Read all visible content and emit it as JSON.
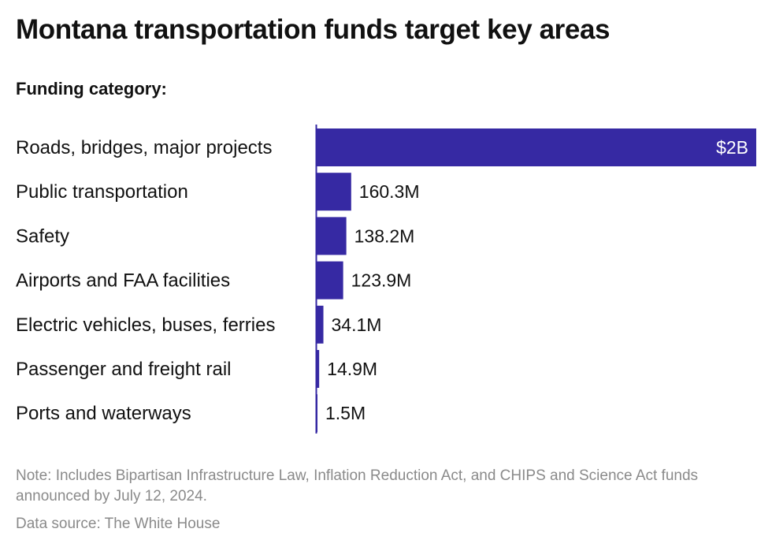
{
  "title": "Montana transportation funds target key areas",
  "subtitle": "Funding category:",
  "note": "Note: Includes Bipartisan Infrastructure Law, Inflation Reduction Act, and CHIPS and Science Act funds announced by July 12, 2024.",
  "source": "Data source: The White House",
  "colors": {
    "bar": "#3629a3",
    "axis": "#3629a3",
    "inside_label": "#ffffff",
    "outside_label": "#111111"
  },
  "chart_data": {
    "type": "bar",
    "orientation": "horizontal",
    "categories": [
      "Roads, bridges, major projects",
      "Public transportation",
      "Safety",
      "Airports and FAA facilities",
      "Electric vehicles, buses, ferries",
      "Passenger and freight rail",
      "Ports and waterways"
    ],
    "values": [
      2000,
      160.3,
      138.2,
      123.9,
      34.1,
      14.9,
      1.5
    ],
    "value_unit": "million USD",
    "value_labels": [
      "$2B",
      "160.3M",
      "138.2M",
      "123.9M",
      "34.1M",
      "14.9M",
      "1.5M"
    ],
    "xlim": [
      0,
      2000
    ],
    "grid": false,
    "legend": "none"
  }
}
